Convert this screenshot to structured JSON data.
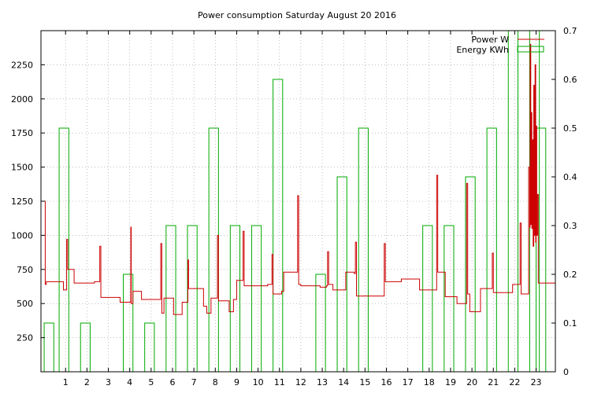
{
  "chart_data": {
    "type": "line",
    "title": "Power consumption Saturday August 20 2016",
    "xlabel": "",
    "ylabel": "",
    "xlim": [
      -0.15,
      23.9
    ],
    "ylim": [
      0,
      2500
    ],
    "y2lim": [
      0,
      0.7
    ],
    "x_ticks": [
      1,
      2,
      3,
      4,
      5,
      6,
      7,
      8,
      9,
      10,
      11,
      12,
      13,
      14,
      15,
      16,
      17,
      18,
      19,
      20,
      21,
      22,
      23
    ],
    "y_ticks": [
      250,
      500,
      750,
      1000,
      1250,
      1500,
      1750,
      2000,
      2250
    ],
    "y2_ticks": [
      0,
      0.1,
      0.2,
      0.3,
      0.4,
      0.5,
      0.6,
      0.7
    ],
    "grid": true,
    "legend": "top-right",
    "colors": {
      "power": "#cc0000",
      "energy": "#00aa00"
    },
    "series": [
      {
        "name": "Power W",
        "axis": "left",
        "style": "step",
        "points": [
          [
            0,
            1250
          ],
          [
            0.05,
            640
          ],
          [
            0.1,
            660
          ],
          [
            0.9,
            660
          ],
          [
            0.9,
            600
          ],
          [
            1.05,
            600
          ],
          [
            1.05,
            970
          ],
          [
            1.1,
            750
          ],
          [
            1.4,
            750
          ],
          [
            1.4,
            650
          ],
          [
            1.7,
            650
          ],
          [
            2.0,
            650
          ],
          [
            2.3,
            650
          ],
          [
            2.35,
            660
          ],
          [
            2.6,
            660
          ],
          [
            2.6,
            920
          ],
          [
            2.65,
            545
          ],
          [
            3.0,
            545
          ],
          [
            3.5,
            545
          ],
          [
            3.55,
            510
          ],
          [
            4.0,
            510
          ],
          [
            4.05,
            1060
          ],
          [
            4.07,
            500
          ],
          [
            4.15,
            590
          ],
          [
            4.55,
            590
          ],
          [
            4.55,
            530
          ],
          [
            5.0,
            530
          ],
          [
            5.4,
            530
          ],
          [
            5.45,
            940
          ],
          [
            5.5,
            430
          ],
          [
            5.6,
            540
          ],
          [
            6.0,
            540
          ],
          [
            6.05,
            420
          ],
          [
            6.4,
            420
          ],
          [
            6.45,
            510
          ],
          [
            6.7,
            510
          ],
          [
            6.72,
            820
          ],
          [
            6.75,
            610
          ],
          [
            7.0,
            610
          ],
          [
            7.4,
            610
          ],
          [
            7.45,
            480
          ],
          [
            7.6,
            430
          ],
          [
            7.8,
            540
          ],
          [
            8.05,
            540
          ],
          [
            8.1,
            1000
          ],
          [
            8.15,
            520
          ],
          [
            8.6,
            520
          ],
          [
            8.65,
            440
          ],
          [
            8.85,
            530
          ],
          [
            9.0,
            670
          ],
          [
            9.25,
            670
          ],
          [
            9.3,
            1030
          ],
          [
            9.35,
            630
          ],
          [
            10.0,
            630
          ],
          [
            10.45,
            640
          ],
          [
            10.65,
            860
          ],
          [
            10.7,
            570
          ],
          [
            11.0,
            570
          ],
          [
            11.1,
            590
          ],
          [
            11.2,
            730
          ],
          [
            11.5,
            730
          ],
          [
            11.8,
            730
          ],
          [
            11.85,
            1290
          ],
          [
            11.9,
            640
          ],
          [
            12.0,
            630
          ],
          [
            12.7,
            630
          ],
          [
            12.9,
            620
          ],
          [
            13.2,
            630
          ],
          [
            13.25,
            880
          ],
          [
            13.3,
            640
          ],
          [
            13.5,
            600
          ],
          [
            14.0,
            600
          ],
          [
            14.1,
            730
          ],
          [
            14.5,
            720
          ],
          [
            14.55,
            950
          ],
          [
            14.6,
            555
          ],
          [
            15.0,
            555
          ],
          [
            15.4,
            555
          ],
          [
            15.85,
            555
          ],
          [
            15.9,
            940
          ],
          [
            15.95,
            660
          ],
          [
            16.4,
            660
          ],
          [
            16.7,
            680
          ],
          [
            17.2,
            680
          ],
          [
            17.5,
            680
          ],
          [
            17.55,
            600
          ],
          [
            18.0,
            600
          ],
          [
            18.3,
            600
          ],
          [
            18.35,
            1440
          ],
          [
            18.4,
            730
          ],
          [
            18.7,
            730
          ],
          [
            18.75,
            550
          ],
          [
            19.2,
            550
          ],
          [
            19.3,
            500
          ],
          [
            19.7,
            500
          ],
          [
            19.75,
            1380
          ],
          [
            19.8,
            570
          ],
          [
            19.9,
            440
          ],
          [
            20.0,
            440
          ],
          [
            20.3,
            440
          ],
          [
            20.4,
            610
          ],
          [
            20.9,
            610
          ],
          [
            20.95,
            870
          ],
          [
            21.0,
            580
          ],
          [
            21.5,
            580
          ],
          [
            21.8,
            580
          ],
          [
            21.9,
            640
          ],
          [
            22.2,
            640
          ],
          [
            22.25,
            1090
          ],
          [
            22.3,
            570
          ],
          [
            22.6,
            570
          ],
          [
            22.65,
            1500
          ],
          [
            22.7,
            1060
          ],
          [
            22.72,
            2400
          ],
          [
            22.75,
            1080
          ],
          [
            22.78,
            1900
          ],
          [
            22.8,
            1050
          ],
          [
            22.83,
            1700
          ],
          [
            22.86,
            920
          ],
          [
            22.89,
            2100
          ],
          [
            22.92,
            1000
          ],
          [
            22.95,
            2250
          ],
          [
            22.98,
            950
          ],
          [
            23.0,
            1800
          ],
          [
            23.03,
            1000
          ],
          [
            23.06,
            1300
          ],
          [
            23.1,
            650
          ],
          [
            23.5,
            650
          ],
          [
            23.9,
            670
          ]
        ]
      },
      {
        "name": "Energy KWh",
        "axis": "right",
        "style": "bar",
        "x": [
          0,
          0.7,
          1.0,
          1.7,
          2.0,
          2.7,
          3.0,
          3.7,
          4.0,
          4.7,
          5.0,
          5.7,
          6.0,
          6.7,
          7.0,
          7.7,
          8.0,
          8.7,
          9.0,
          9.7,
          10.0,
          10.7,
          11.0,
          11.7,
          12.0,
          12.7,
          13.0,
          13.7,
          14.0,
          14.7,
          15.0,
          15.7,
          16.0,
          16.7,
          17.0,
          17.7,
          18.0,
          18.7,
          19.0,
          19.7,
          20.0,
          20.7,
          21.0,
          21.7,
          22.0,
          22.7,
          23.0
        ],
        "values": [
          0.1,
          0.5,
          0,
          0.1,
          0,
          0,
          0,
          0.2,
          0,
          0.1,
          0,
          0.3,
          0,
          0.3,
          0,
          0.5,
          0,
          0.3,
          0,
          0.3,
          0,
          0.6,
          0,
          0,
          0,
          0.2,
          0,
          0.4,
          0,
          0.5,
          0,
          0,
          0,
          0,
          0,
          0.3,
          0,
          0.3,
          0,
          0.4,
          0,
          0.5,
          0,
          0.7,
          0,
          0.7,
          0.5
        ]
      }
    ]
  }
}
